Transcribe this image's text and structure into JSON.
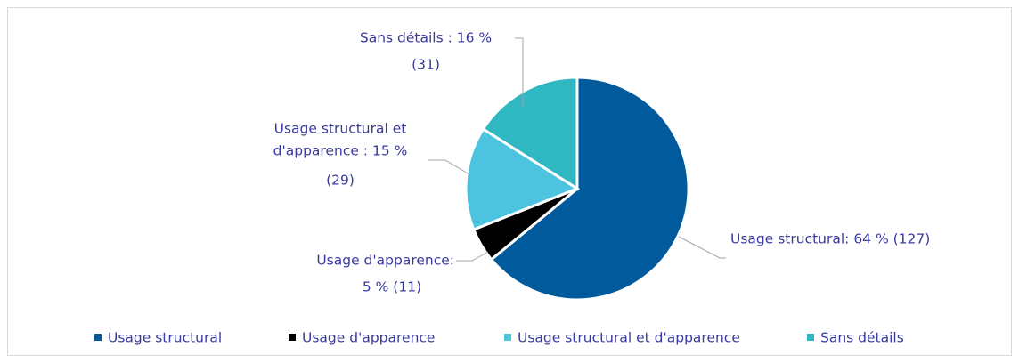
{
  "chart_data": {
    "type": "pie",
    "categories": [
      "Usage structural",
      "Usage d'apparence",
      "Usage structural et d'apparence",
      "Sans détails"
    ],
    "values": [
      64,
      5,
      15,
      16
    ],
    "value_labels": [
      [
        "Usage structural: 64 % (127)"
      ],
      [
        "Usage d'apparence:",
        "5 % (11)"
      ],
      [
        "Usage structural et",
        "d'apparence : 15 %",
        "(29)"
      ],
      [
        "Sans détails : 16 %",
        "(31)"
      ]
    ],
    "colors": [
      "#005a9c",
      "#000000",
      "#4cc4e0",
      "#2fb7c2"
    ],
    "legend": "bottom"
  }
}
